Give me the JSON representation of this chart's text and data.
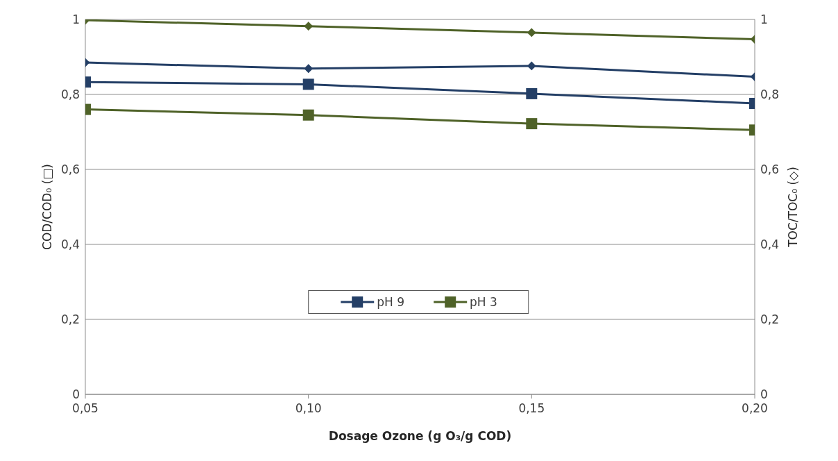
{
  "chart_data": {
    "type": "line",
    "xlabel": "Dosage Ozone (g O₃/g COD)",
    "ylabel": "COD/COD₀ (□)",
    "y2label": "TOC/TOC₀ (◇)",
    "x": [
      0.05,
      0.1,
      0.15,
      0.2
    ],
    "xlim": [
      0.05,
      0.2
    ],
    "xticks": [
      {
        "value": 0.05,
        "label": "0,05"
      },
      {
        "value": 0.1,
        "label": "0,10"
      },
      {
        "value": 0.15,
        "label": "0,15"
      },
      {
        "value": 0.2,
        "label": "0,20"
      }
    ],
    "ylim": [
      0,
      1
    ],
    "yticks": [
      0,
      {
        "value": 0.2,
        "label": "0,2"
      },
      {
        "value": 0.4,
        "label": "0,4"
      },
      {
        "value": 0.6,
        "label": "0,6"
      },
      {
        "value": 0.8,
        "label": "0,8"
      },
      1
    ],
    "y2lim": [
      0,
      1
    ],
    "y2ticks": [
      0,
      {
        "value": 0.2,
        "label": "0,2"
      },
      {
        "value": 0.4,
        "label": "0,4"
      },
      {
        "value": 0.6,
        "label": "0,6"
      },
      {
        "value": 0.8,
        "label": "0,8"
      },
      1
    ],
    "grid": "y",
    "legend": "center",
    "series": [
      {
        "name": "pH 9",
        "color": "#243f66",
        "marker": "square",
        "values": [
          0.833,
          0.827,
          0.802,
          0.776
        ]
      },
      {
        "name": "pH 3",
        "color": "#4f6228",
        "marker": "square",
        "values": [
          0.76,
          0.745,
          0.722,
          0.705
        ]
      },
      {
        "color": "#243f66",
        "marker": "diamond",
        "axis": "y2",
        "values": [
          0.885,
          0.869,
          0.876,
          0.847
        ]
      },
      {
        "color": "#4f6228",
        "marker": "diamond",
        "axis": "y2",
        "values": [
          0.998,
          0.982,
          0.965,
          0.947
        ]
      }
    ]
  }
}
